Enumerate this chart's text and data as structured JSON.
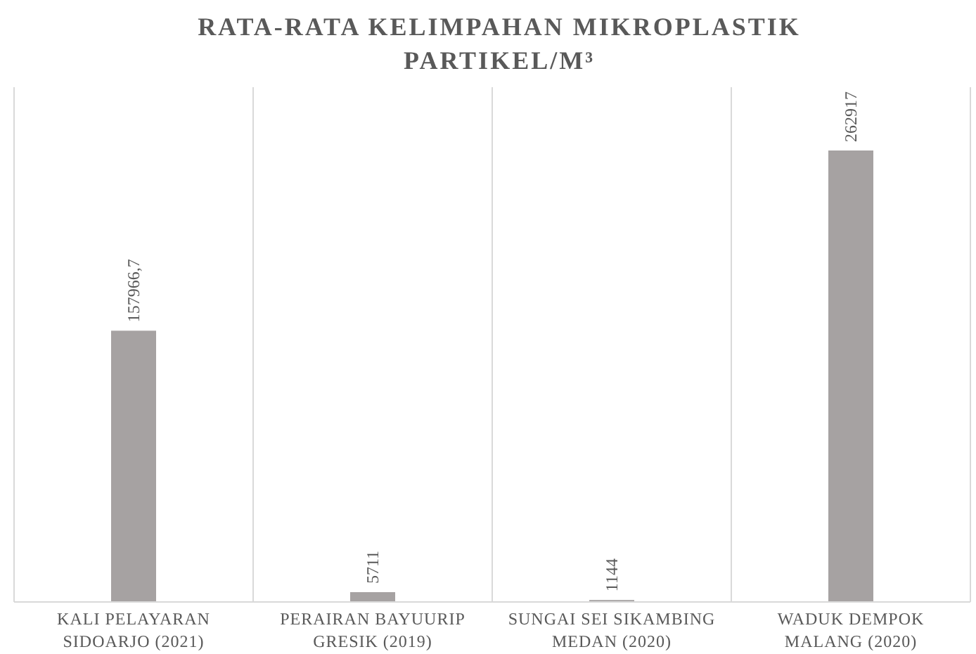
{
  "chart_data": {
    "type": "bar",
    "title": "RATA-RATA KELIMPAHAN MIKROPLASTIK\nPARTIKEL/M³",
    "categories": [
      "KALI PELAYARAN\nSIDOARJO (2021)",
      "PERAIRAN BAYUURIP\nGRESIK (2019)",
      "SUNGAI SEI SIKAMBING\nMEDAN (2020)",
      "WADUK DEMPOK\nMALANG (2020)"
    ],
    "values": [
      157966.7,
      5711,
      1144,
      262917
    ],
    "value_labels": [
      "157966,7",
      "5711",
      "1144",
      "262917"
    ],
    "color": "#a6a2a2",
    "grid": "x"
  }
}
